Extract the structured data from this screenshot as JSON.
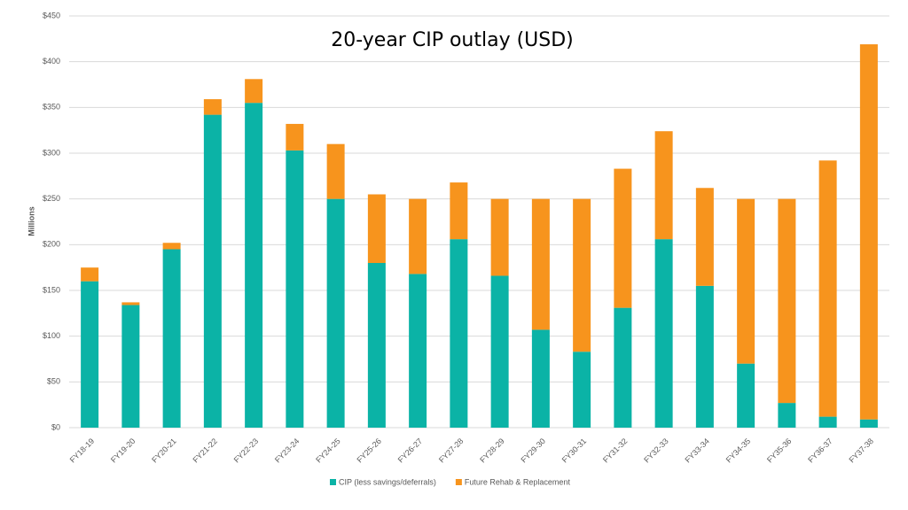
{
  "chart_data": {
    "type": "stacked_bar",
    "title": "20-year CIP outlay (USD)",
    "y_label": "Millions",
    "categories": [
      "FY18-19",
      "FY19-20",
      "FY20-21",
      "FY21-22",
      "FY22-23",
      "FY23-24",
      "FY24-25",
      "FY25-26",
      "FY26-27",
      "FY27-28",
      "FY28-29",
      "FY29-30",
      "FY30-31",
      "FY31-32",
      "FY32-33",
      "FY33-34",
      "FY34-35",
      "FY35-36",
      "FY36-37",
      "FY37-38"
    ],
    "series": [
      {
        "name": "CIP (less savings/deferrals)",
        "color": "#0bb3a6",
        "values": [
          160,
          134,
          195,
          342,
          355,
          303,
          250,
          180,
          168,
          206,
          166,
          107,
          83,
          131,
          206,
          155,
          70,
          27,
          12,
          9
        ]
      },
      {
        "name": "Future Rehab & Replacement",
        "color": "#f7941d",
        "values": [
          15,
          3,
          7,
          17,
          26,
          29,
          60,
          75,
          82,
          62,
          84,
          143,
          167,
          152,
          118,
          107,
          180,
          223,
          280,
          410
        ]
      }
    ],
    "ylim": [
      0,
      450
    ],
    "yticks": [
      {
        "value": 0,
        "label": "$0"
      },
      {
        "value": 50,
        "label": "$50"
      },
      {
        "value": 100,
        "label": "$100"
      },
      {
        "value": 150,
        "label": "$150"
      },
      {
        "value": 200,
        "label": "$200"
      },
      {
        "value": 250,
        "label": "$250"
      },
      {
        "value": 300,
        "label": "$300"
      },
      {
        "value": 350,
        "label": "$350"
      },
      {
        "value": 400,
        "label": "$400"
      },
      {
        "value": 450,
        "label": "$450"
      }
    ],
    "grid": true,
    "legend": "bottom"
  }
}
